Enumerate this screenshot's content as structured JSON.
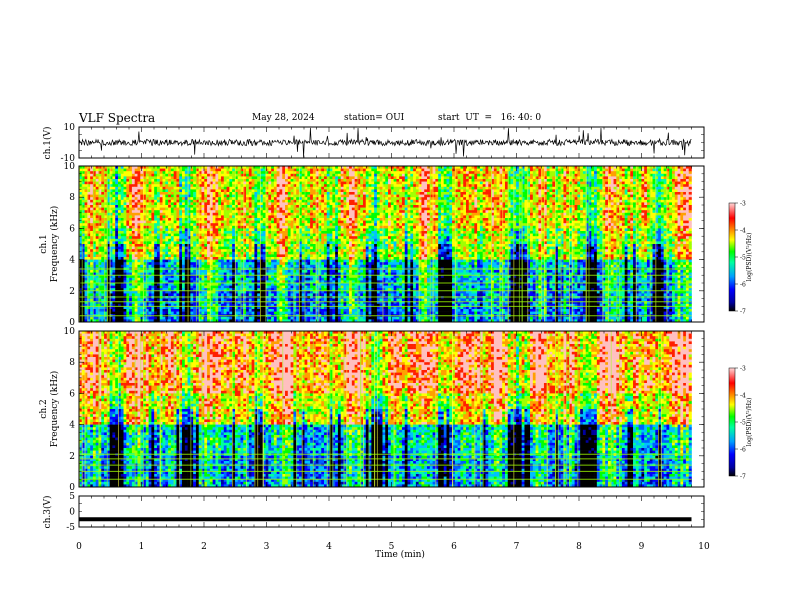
{
  "header": {
    "title": "VLF Spectra",
    "date": "May 28, 2024",
    "station": "station= OUI",
    "start": "start  UT  =   16: 40: 0"
  },
  "colors": {
    "colormap": [
      "#000000",
      "#0000a0",
      "#0000ff",
      "#0060ff",
      "#00c0ff",
      "#00ffa0",
      "#00ff00",
      "#a0ff00",
      "#ffff00",
      "#ffa000",
      "#ff2000",
      "#ffc0c0"
    ]
  },
  "chart_data": [
    {
      "type": "line",
      "panel": "ch1-waveform",
      "ylabel": "ch.1(V)",
      "ylim": [
        -10,
        10
      ],
      "yticks": [
        "10",
        "-10"
      ],
      "x_range_min": [
        0,
        9.8
      ],
      "description_level": "noise band approximately +/-2 V centered near 0 V with impulsive spikes to about +/-10 V"
    },
    {
      "type": "heatmap",
      "panel": "ch1-spectrogram",
      "ylabel": "ch.1",
      "ylabel2": "Frequency  (kHz)",
      "ylim": [
        0,
        10
      ],
      "yticks": [
        "0",
        "2",
        "4",
        "6",
        "8",
        "10"
      ],
      "colorbar": {
        "label": "log(PSD)(V²/Hz)",
        "range": [
          -7,
          -3
        ],
        "ticks": [
          "-3",
          "-4",
          "-5",
          "-6",
          "-7"
        ]
      },
      "bands_khz": [
        0.4,
        1.0,
        1.3,
        1.6,
        2.0,
        2.5,
        3.0,
        3.4
      ]
    },
    {
      "type": "heatmap",
      "panel": "ch2-spectrogram",
      "ylabel": "ch.2",
      "ylabel2": "Frequency  (kHz)",
      "ylim": [
        0,
        10
      ],
      "yticks": [
        "0",
        "2",
        "4",
        "6",
        "8",
        "10"
      ],
      "colorbar": {
        "label": "log(PSD)(V²/Hz)",
        "range": [
          -7,
          -3
        ],
        "ticks": [
          "-3",
          "-4",
          "-5",
          "-6",
          "-7"
        ]
      },
      "bands_khz": [
        0.5,
        1.0,
        1.4,
        1.8,
        2.1
      ]
    },
    {
      "type": "line",
      "panel": "ch3-waveform",
      "ylabel": "ch.3(V)",
      "ylim": [
        -5,
        5
      ],
      "yticks": [
        "5",
        "0",
        "-5"
      ],
      "x": [
        0,
        9.8
      ],
      "y": [
        -2.5,
        -2.5
      ]
    }
  ],
  "xaxis": {
    "label": "Time  (min)",
    "range": [
      0,
      10
    ],
    "ticks": [
      "0",
      "1",
      "2",
      "3",
      "4",
      "5",
      "6",
      "7",
      "8",
      "9",
      "10"
    ]
  }
}
